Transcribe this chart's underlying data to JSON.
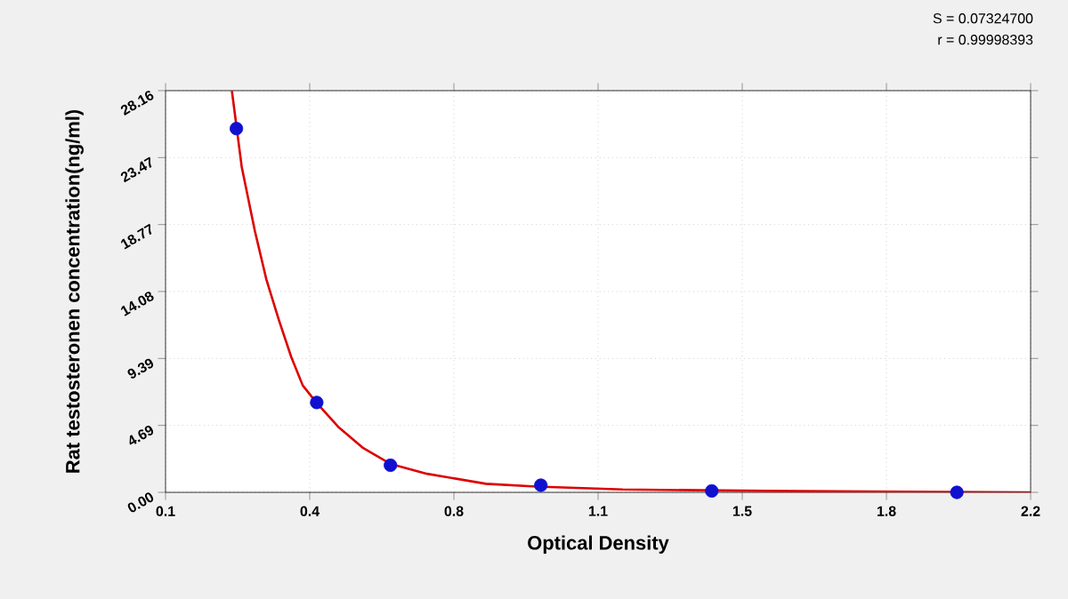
{
  "chart_data": {
    "type": "scatter",
    "xlabel": "Optical Density",
    "ylabel": "Rat testosteronen concentration(ng/ml)",
    "annotations": [
      "S = 0.07324700",
      "r = 0.99998393"
    ],
    "xlim": [
      0.1,
      2.2
    ],
    "ylim": [
      0,
      28.16
    ],
    "xticks": [
      0.1,
      {
        "value": 0.45,
        "label": "0.4"
      },
      0.8,
      {
        "value": 1.15,
        "label": "1.1"
      },
      1.5,
      {
        "value": 1.85,
        "label": "1.8"
      },
      2.2
    ],
    "yticks": [
      {
        "value": 0,
        "label": "0.00"
      },
      {
        "value": 4.6933,
        "label": "4.69"
      },
      {
        "value": 9.3867,
        "label": "9.39"
      },
      {
        "value": 14.08,
        "label": "14.08"
      },
      {
        "value": 18.7733,
        "label": "18.77"
      },
      {
        "value": 23.4667,
        "label": "23.47"
      },
      {
        "value": 28.16,
        "label": "28.16"
      }
    ],
    "grid": true,
    "series": [
      {
        "type": "line",
        "color": "#dd0000",
        "line_style": "solid",
        "x": [
          0.261,
          0.285,
          0.317,
          0.345,
          0.375,
          0.405,
          0.433,
          0.466,
          0.519,
          0.58,
          0.646,
          0.735,
          0.878,
          1.0,
          1.21,
          1.56,
          2.2
        ],
        "values": [
          28.16,
          22.8,
          18.3,
          14.9,
          12.1,
          9.5,
          7.5,
          6.3,
          4.6,
          3.1,
          2.0,
          1.3,
          0.6,
          0.4,
          0.2,
          0.1,
          0
        ]
      },
      {
        "color": "#1010d0",
        "marker": "circle",
        "x": [
          0.272,
          0.467,
          0.646,
          1.011,
          1.426,
          2.021
        ],
        "values": [
          25.5,
          6.3,
          1.9,
          0.5,
          0.1,
          0
        ]
      }
    ]
  }
}
